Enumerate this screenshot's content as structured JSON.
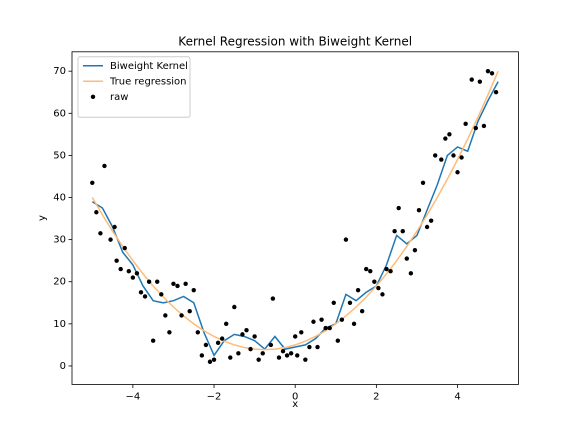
{
  "chart_data": {
    "type": "line",
    "title": "Kernel Regression with Biweight Kernel",
    "x_label": "x",
    "y_label": "y",
    "xlim": [
      -5.5,
      5.5
    ],
    "ylim": [
      -4.4,
      74.6
    ],
    "xticks": [
      {
        "value": -4,
        "label": "−4"
      },
      {
        "value": -2,
        "label": "−2"
      },
      0,
      2,
      4
    ],
    "yticks": [
      0,
      10,
      20,
      30,
      40,
      50,
      60,
      70
    ],
    "legend": "upper left",
    "series": [
      {
        "name": "Biweight Kernel",
        "color": "#1f77b4",
        "style": "line",
        "x": [
          -5,
          -4.75,
          -4.5,
          -4.25,
          -4,
          -3.75,
          -3.5,
          -3.25,
          -3,
          -2.75,
          -2.5,
          -2.25,
          -2,
          -1.75,
          -1.5,
          -1.25,
          -1,
          -0.75,
          -0.5,
          -0.25,
          0,
          0.25,
          0.5,
          0.75,
          1,
          1.25,
          1.5,
          1.75,
          2,
          2.25,
          2.5,
          2.75,
          3,
          3.25,
          3.5,
          3.75,
          4,
          4.25,
          4.5,
          4.75,
          5
        ],
        "values": [
          39,
          37.5,
          33,
          27,
          24,
          19,
          15.5,
          15,
          15.5,
          16.5,
          15,
          8,
          2.5,
          6,
          7.5,
          7,
          6,
          4,
          7,
          4,
          4.5,
          5,
          6.5,
          9,
          10,
          17,
          15.5,
          17.5,
          19,
          24,
          31,
          29,
          31,
          37,
          43,
          50,
          52,
          51,
          58,
          63,
          67.5
        ]
      },
      {
        "name": "True regression",
        "color": "#ffbb78",
        "style": "line",
        "x": [
          -5,
          -4.75,
          -4.5,
          -4.25,
          -4,
          -3.75,
          -3.5,
          -3.25,
          -3,
          -2.75,
          -2.5,
          -2.25,
          -2,
          -1.75,
          -1.5,
          -1.25,
          -1,
          -0.75,
          -0.5,
          -0.25,
          0,
          0.25,
          0.5,
          0.75,
          1,
          1.25,
          1.5,
          1.75,
          2,
          2.25,
          2.5,
          2.75,
          3,
          3.25,
          3.5,
          3.75,
          4,
          4.25,
          4.5,
          4.75,
          5
        ],
        "values": [
          40,
          35.875,
          32,
          28.375,
          25,
          21.875,
          19,
          16.375,
          14,
          11.875,
          10,
          8.375,
          7,
          5.875,
          5,
          4.375,
          4,
          3.875,
          4,
          4.375,
          5,
          5.875,
          7,
          8.375,
          10,
          11.875,
          14,
          16.375,
          19,
          21.875,
          25,
          28.375,
          32,
          35.875,
          40,
          44.375,
          49,
          53.875,
          59,
          64.375,
          70
        ]
      },
      {
        "name": "raw",
        "color": "#000000",
        "style": "points",
        "x": [
          -5,
          -4.9,
          -4.8,
          -4.7,
          -4.55,
          -4.45,
          -4.4,
          -4.3,
          -4.2,
          -4.1,
          -4,
          -3.9,
          -3.8,
          -3.7,
          -3.6,
          -3.5,
          -3.4,
          -3.3,
          -3.2,
          -3.1,
          -3,
          -2.9,
          -2.8,
          -2.7,
          -2.6,
          -2.5,
          -2.4,
          -2.3,
          -2.2,
          -2.1,
          -2,
          -1.9,
          -1.8,
          -1.7,
          -1.6,
          -1.5,
          -1.4,
          -1.3,
          -1.2,
          -1.1,
          -1,
          -0.9,
          -0.8,
          -0.6,
          -0.55,
          -0.4,
          -0.3,
          -0.2,
          -0.1,
          0,
          0.05,
          0.15,
          0.25,
          0.35,
          0.45,
          0.55,
          0.65,
          0.75,
          0.85,
          0.95,
          1.05,
          1.15,
          1.25,
          1.35,
          1.45,
          1.55,
          1.65,
          1.75,
          1.85,
          1.95,
          2.05,
          2.15,
          2.25,
          2.35,
          2.45,
          2.55,
          2.65,
          2.75,
          2.85,
          2.95,
          3.05,
          3.15,
          3.25,
          3.35,
          3.45,
          3.6,
          3.7,
          3.8,
          3.9,
          4,
          4.1,
          4.2,
          4.35,
          4.45,
          4.55,
          4.65,
          4.75,
          4.85,
          4.95
        ],
        "values": [
          43.5,
          36.5,
          31.5,
          47.5,
          30,
          33,
          25,
          23,
          28,
          22.5,
          21,
          22,
          17.5,
          16.5,
          20,
          6,
          20,
          17,
          12,
          8,
          19.5,
          19,
          12,
          19.5,
          13,
          18,
          8,
          2.5,
          5,
          1,
          1.5,
          5.5,
          6.5,
          10,
          2,
          14,
          3,
          7.5,
          8.5,
          4,
          7,
          1.5,
          3,
          5,
          16,
          2,
          3.5,
          2.5,
          3,
          7,
          2.5,
          8,
          1.5,
          4.5,
          10.5,
          4.5,
          11,
          9,
          9,
          15,
          6,
          11,
          30,
          15,
          10,
          18,
          13,
          23,
          22.5,
          20,
          18.5,
          17,
          23,
          22.5,
          32,
          37.5,
          32,
          25.5,
          22,
          27.5,
          37,
          43.5,
          33,
          34.5,
          50,
          49,
          54,
          55,
          50,
          46,
          49.5,
          57.5,
          68,
          56.5,
          67.5,
          57,
          70,
          69.5,
          65
        ]
      }
    ]
  }
}
